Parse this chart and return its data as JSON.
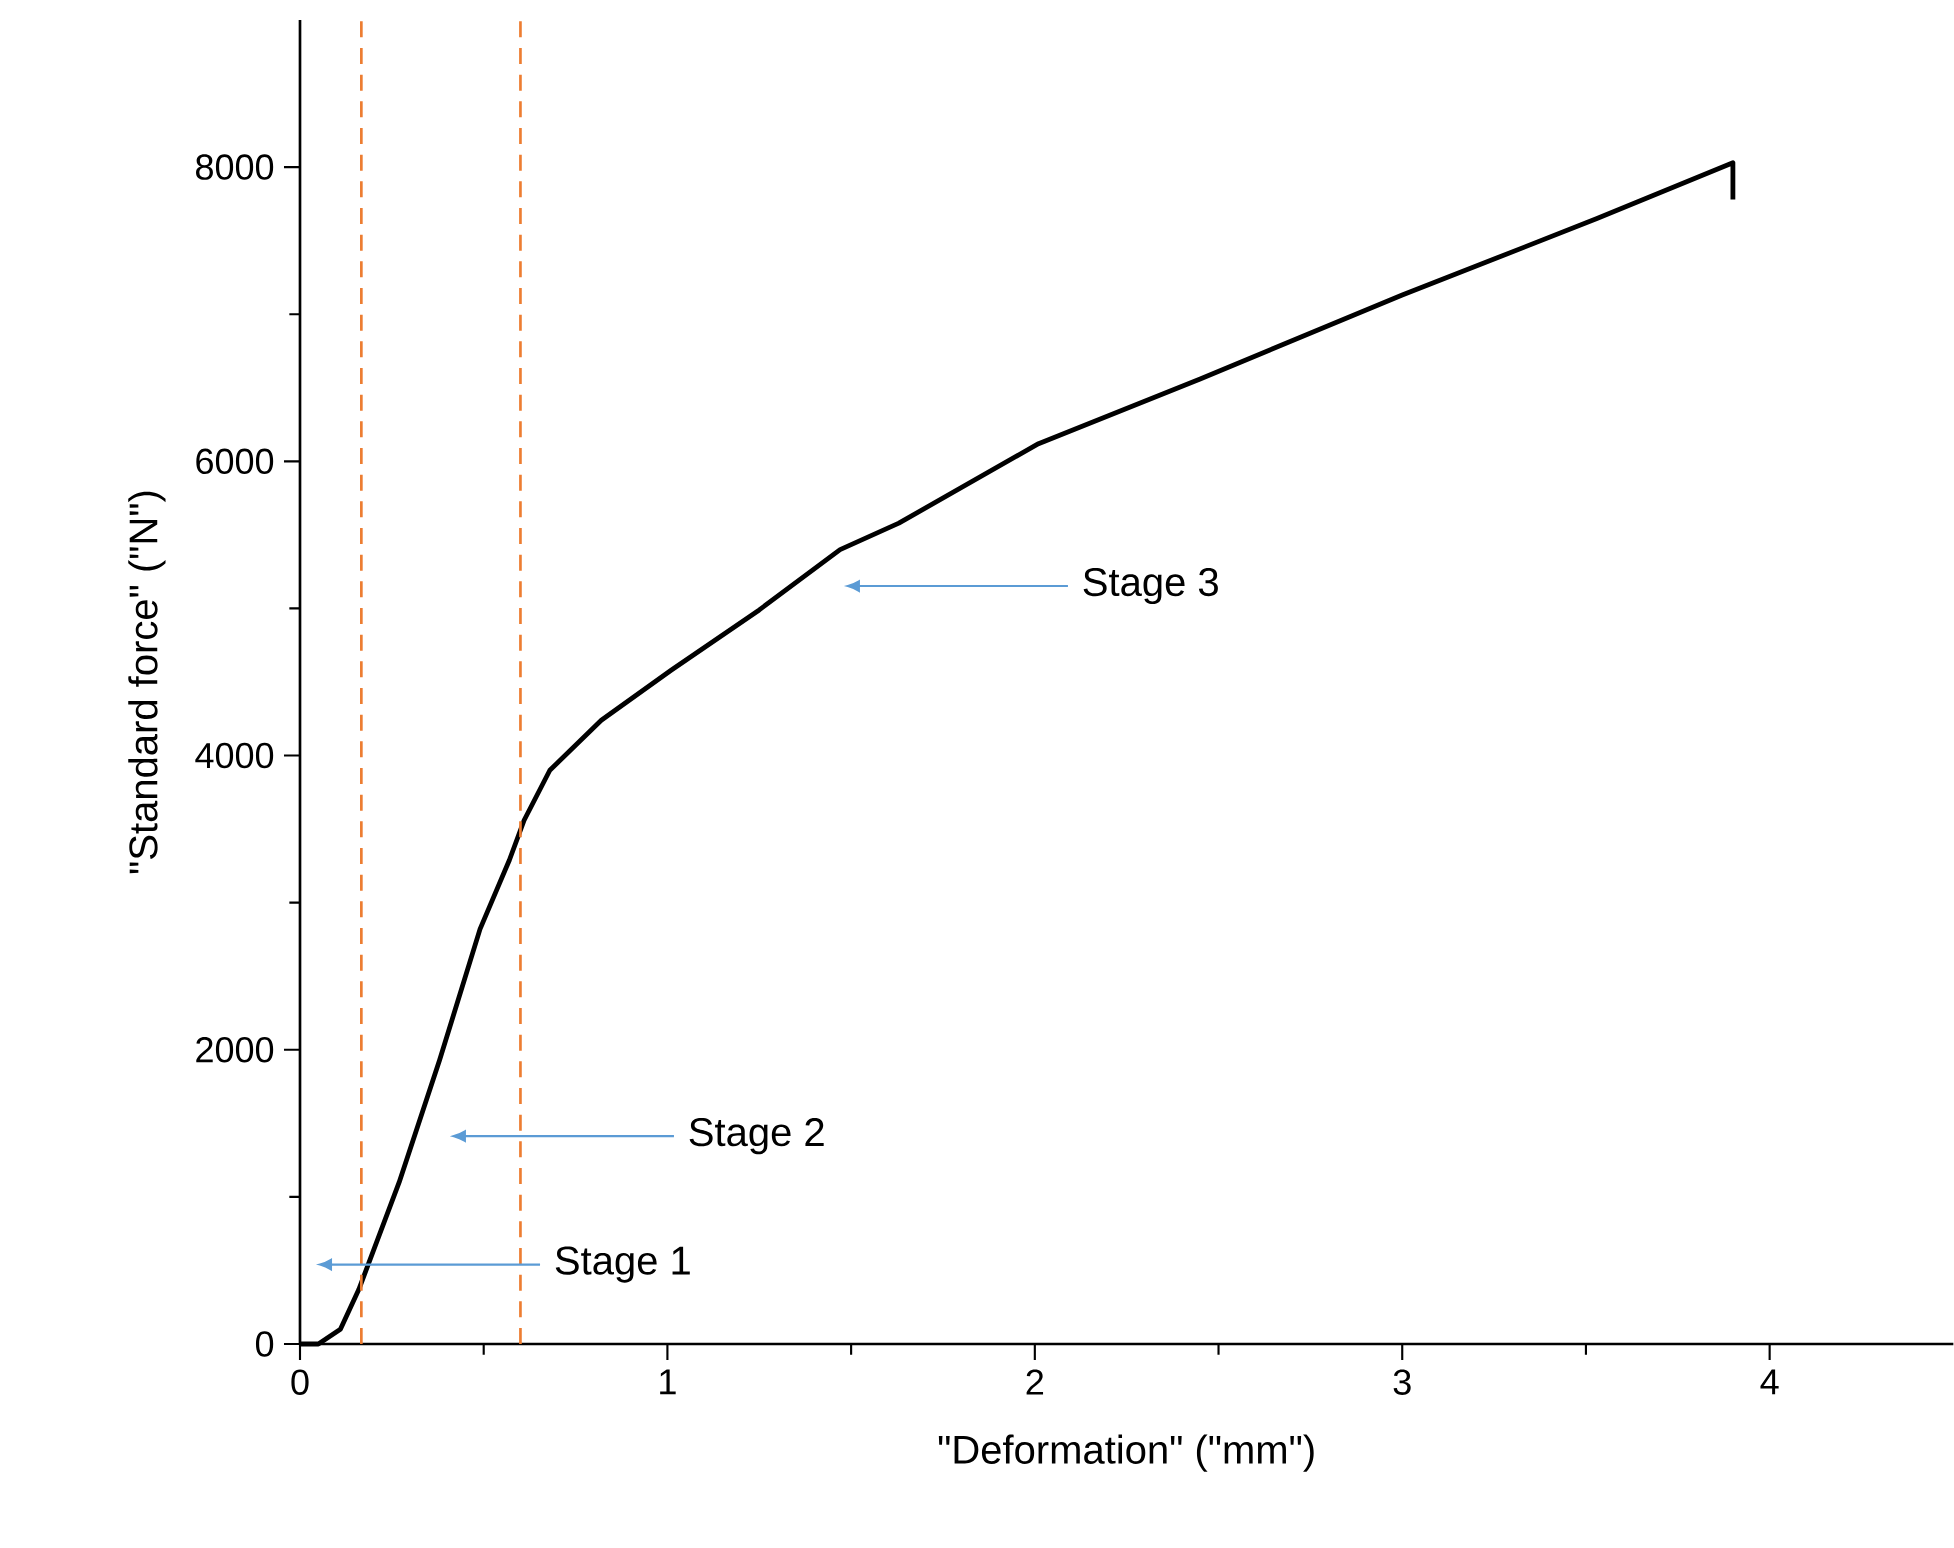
{
  "chart_data": {
    "type": "line",
    "xlabel": "\"Deformation\" (\"mm\")",
    "ylabel": "\"Standard force\" (\"N\")",
    "x": [
      0,
      0.05,
      0.11,
      0.16,
      0.27,
      0.38,
      0.49,
      0.57,
      0.61,
      0.68,
      0.82,
      1.01,
      1.25,
      1.47,
      1.63,
      2.01,
      2.45,
      3.0,
      3.53,
      3.9,
      3.9
    ],
    "series": [
      {
        "color": "#000000",
        "values": [
          0,
          0,
          100,
          370,
          1100,
          1930,
          2820,
          3290,
          3560,
          3900,
          4240,
          4580,
          4990,
          5400,
          5580,
          6120,
          6560,
          7130,
          7650,
          8030,
          7780
        ]
      }
    ],
    "xlim": [
      0,
      4.5
    ],
    "ylim": [
      0,
      9000
    ],
    "xticks": [
      0,
      1,
      2,
      3,
      4
    ],
    "yticks": [
      0,
      2000,
      4000,
      6000,
      8000
    ],
    "ref_lines": [
      {
        "axis": "x",
        "value": 0.167,
        "color": "#ed7d31",
        "line_style": "dashed"
      },
      {
        "axis": "x",
        "value": 0.6,
        "color": "#ed7d31",
        "line_style": "dashed"
      }
    ],
    "annotations": [
      "Stage 1",
      "Stage 2",
      "Stage 3"
    ]
  }
}
